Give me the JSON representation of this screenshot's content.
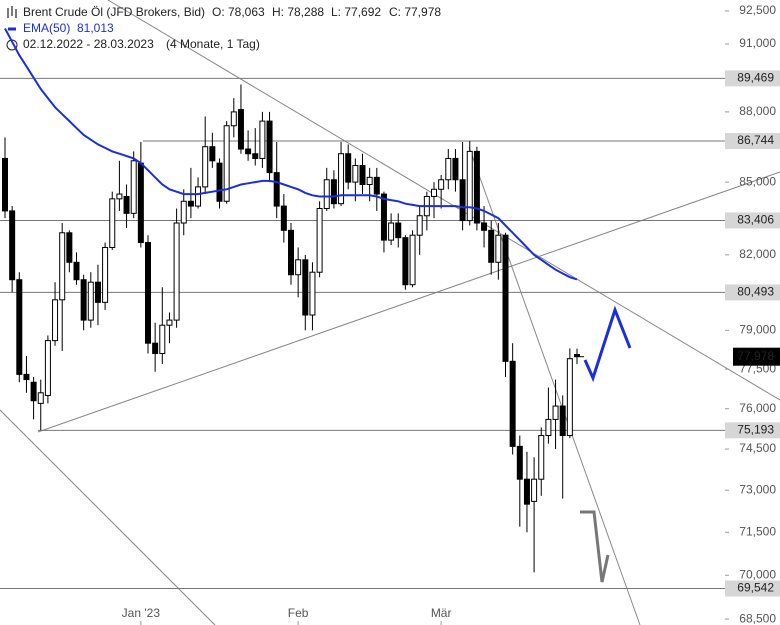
{
  "chart_data": {
    "type": "candlestick",
    "header": {
      "title": "Brent Crude Öl (JFD Brokers, Bid)",
      "open": "O: 78,063",
      "high": "H: 78,288",
      "low": "L: 77,692",
      "close": "C: 77,978",
      "period": "02.12.2022 - 28.03.2023",
      "span": "(4 Monate, 1 Tag)"
    },
    "log_scale": true,
    "ylim": [
      68300,
      93000
    ],
    "yticks": [
      {
        "value": 92500,
        "label": "92,500"
      },
      {
        "value": 91000,
        "label": "91,000"
      },
      {
        "value": 88000,
        "label": "88,000"
      },
      {
        "value": 85000,
        "label": "85,000"
      },
      {
        "value": 82000,
        "label": "82,000"
      },
      {
        "value": 79000,
        "label": "79,000"
      },
      {
        "value": 77500,
        "label": "77,500"
      },
      {
        "value": 76000,
        "label": "76,000"
      },
      {
        "value": 74500,
        "label": "74,500"
      },
      {
        "value": 73000,
        "label": "73,000"
      },
      {
        "value": 71500,
        "label": "71,500"
      },
      {
        "value": 70000,
        "label": "70,000"
      },
      {
        "value": 68500,
        "label": "68,500"
      }
    ],
    "categories": [
      null,
      null,
      null,
      null,
      null,
      null,
      null,
      null,
      null,
      null,
      null,
      null,
      null,
      null,
      null,
      null,
      null,
      null,
      null,
      "Jan '23",
      null,
      null,
      null,
      null,
      null,
      null,
      null,
      null,
      null,
      null,
      null,
      null,
      null,
      null,
      null,
      null,
      null,
      null,
      null,
      null,
      null,
      "Feb",
      null,
      null,
      null,
      null,
      null,
      null,
      null,
      null,
      null,
      null,
      null,
      null,
      null,
      null,
      null,
      null,
      null,
      null,
      null,
      "Mär",
      null,
      null,
      null,
      null,
      null,
      null,
      null,
      null,
      null,
      null,
      null,
      null,
      null,
      null,
      null,
      null,
      null,
      null,
      null
    ],
    "candles": {
      "up_color": "#ffffff",
      "down_color": "#000000",
      "open": [
        86000,
        83800,
        81000,
        77300,
        77000,
        76200,
        76500,
        78600,
        80200,
        82900,
        81700,
        81000,
        79400,
        80900,
        80100,
        82300,
        84300,
        84400,
        83700,
        85800,
        82500,
        78500,
        78100,
        79200,
        79400,
        83300,
        84200,
        84000,
        84800,
        86500,
        85800,
        84200,
        87400,
        88100,
        86400,
        86200,
        86000,
        87600,
        85400,
        84000,
        83000,
        81200,
        81800,
        79600,
        81300,
        83900,
        85100,
        84100,
        86200,
        85000,
        85700,
        84900,
        85200,
        84500,
        82600,
        83300,
        82700,
        80800,
        82800,
        83600,
        84400,
        84700,
        85100,
        86000,
        85100,
        83400,
        86300,
        83300,
        83000,
        81700,
        82800,
        77800,
        74600,
        73400,
        72600,
        73400,
        75000,
        75600,
        76100,
        75000,
        78063
      ],
      "high": [
        86900,
        84000,
        81300,
        78000,
        77200,
        77100,
        78800,
        80900,
        83300,
        83000,
        82100,
        81200,
        81300,
        81600,
        82500,
        84600,
        85900,
        84900,
        86300,
        86700,
        82800,
        79300,
        80700,
        79700,
        83900,
        84700,
        85600,
        85200,
        87800,
        87100,
        86000,
        87600,
        88600,
        89200,
        87200,
        87300,
        88000,
        88000,
        86700,
        84500,
        83300,
        82300,
        82000,
        81700,
        84200,
        85600,
        85500,
        86700,
        86600,
        86000,
        86200,
        85600,
        85600,
        84600,
        83700,
        83700,
        82800,
        83000,
        84000,
        84600,
        85000,
        85300,
        86400,
        86400,
        86700,
        86744,
        86500,
        84000,
        83400,
        83300,
        82900,
        78500,
        75000,
        74400,
        74200,
        75300,
        76800,
        77100,
        76500,
        78300,
        78288
      ],
      "low": [
        83500,
        80500,
        77000,
        76600,
        75600,
        75200,
        76200,
        78400,
        78200,
        81300,
        80800,
        79000,
        79100,
        79200,
        79800,
        82200,
        83800,
        83100,
        83500,
        82300,
        78100,
        77400,
        77700,
        78500,
        79100,
        82800,
        83500,
        83900,
        84500,
        85600,
        83900,
        84100,
        86900,
        86200,
        85900,
        85700,
        85600,
        85000,
        83500,
        82500,
        80800,
        80300,
        79000,
        79000,
        81100,
        83800,
        83900,
        84000,
        84700,
        84200,
        84500,
        84200,
        83800,
        82100,
        82400,
        82300,
        80600,
        80700,
        82000,
        83000,
        83500,
        83900,
        84700,
        84600,
        83000,
        83200,
        83000,
        82300,
        81200,
        81000,
        77200,
        74300,
        71700,
        71500,
        70100,
        72800,
        74700,
        74500,
        72700,
        74900,
        77692
      ],
      "close": [
        83800,
        81000,
        77300,
        77100,
        76300,
        76600,
        78600,
        80200,
        82900,
        81700,
        81000,
        79400,
        80900,
        80100,
        82300,
        84300,
        84500,
        83700,
        85900,
        82500,
        78500,
        78100,
        79200,
        79400,
        83300,
        84200,
        84000,
        84800,
        86500,
        85900,
        84200,
        87400,
        88000,
        86400,
        86200,
        86000,
        87600,
        85400,
        84000,
        83000,
        81200,
        81800,
        79600,
        81300,
        83900,
        85100,
        84100,
        86200,
        85000,
        85700,
        84900,
        85200,
        84500,
        82600,
        83300,
        82700,
        80800,
        82800,
        83600,
        84400,
        84700,
        85100,
        86000,
        85100,
        83400,
        86300,
        83300,
        83000,
        81700,
        82800,
        77800,
        74600,
        73400,
        72500,
        73400,
        75000,
        75600,
        76100,
        75000,
        77900,
        77978
      ]
    },
    "ema": {
      "name": "EMA(50)",
      "color": "#1a2ee0",
      "last_label": "81,013",
      "values": [
        91700,
        91100,
        90500,
        90000,
        89500,
        89000,
        88600,
        88200,
        87900,
        87600,
        87300,
        87000,
        86800,
        86600,
        86450,
        86300,
        86200,
        86100,
        86000,
        85800,
        85500,
        85200,
        84900,
        84700,
        84600,
        84500,
        84500,
        84500,
        84550,
        84600,
        84650,
        84700,
        84800,
        84900,
        84950,
        85000,
        85050,
        85050,
        85000,
        84900,
        84800,
        84700,
        84550,
        84450,
        84400,
        84400,
        84400,
        84450,
        84450,
        84450,
        84450,
        84450,
        84400,
        84300,
        84250,
        84200,
        84100,
        84050,
        84000,
        84000,
        84000,
        84000,
        84000,
        84000,
        83950,
        83950,
        83900,
        83800,
        83650,
        83500,
        83200,
        82900,
        82600,
        82300,
        82000,
        81800,
        81600,
        81400,
        81250,
        81100,
        81013
      ]
    },
    "levels": [
      {
        "value": 89469,
        "label": "89,469"
      },
      {
        "value": 86744,
        "label": "86,744"
      },
      {
        "value": 83406,
        "label": "83,406"
      },
      {
        "value": 80493,
        "label": "80,493"
      },
      {
        "value": 75193,
        "label": "75,193"
      },
      {
        "value": 69542,
        "label": "69,542"
      }
    ],
    "price_marker": {
      "value": 77978,
      "label": "77,978"
    }
  }
}
